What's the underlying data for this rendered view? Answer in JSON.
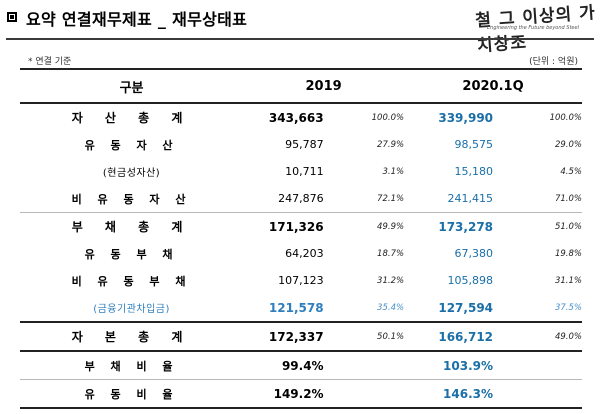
{
  "header": {
    "title": "요약 연결재무제표 _ 재무상태표",
    "logo_text": "철 그 이상의 가치창조",
    "logo_sub": "Engineering the Future beyond Steel"
  },
  "notes": {
    "left": "* 연결 기준",
    "right": "(단위 : 억원)"
  },
  "columns": {
    "label": "구분",
    "year1": "2019",
    "year2": "2020.1Q"
  },
  "rows": [
    {
      "label": "자 산 총 계",
      "v1": "343,663",
      "p1": "100.0%",
      "v2": "339,990",
      "p2": "100.0%"
    },
    {
      "label": "유 동 자 산",
      "v1": "95,787",
      "p1": "27.9%",
      "v2": "98,575",
      "p2": "29.0%"
    },
    {
      "label": "(현금성자산)",
      "v1": "10,711",
      "p1": "3.1%",
      "v2": "15,180",
      "p2": "4.5%"
    },
    {
      "label": "비 유 동 자 산",
      "v1": "247,876",
      "p1": "72.1%",
      "v2": "241,415",
      "p2": "71.0%"
    },
    {
      "label": "부 채 총 계",
      "v1": "171,326",
      "p1": "49.9%",
      "v2": "173,278",
      "p2": "51.0%"
    },
    {
      "label": "유 동 부 채",
      "v1": "64,203",
      "p1": "18.7%",
      "v2": "67,380",
      "p2": "19.8%"
    },
    {
      "label": "비 유 동 부 채",
      "v1": "107,123",
      "p1": "31.2%",
      "v2": "105,898",
      "p2": "31.1%"
    },
    {
      "label": "(금융기관차입금)",
      "v1": "121,578",
      "p1": "35.4%",
      "v2": "127,594",
      "p2": "37.5%"
    },
    {
      "label": "자 본 총 계",
      "v1": "172,337",
      "p1": "50.1%",
      "v2": "166,712",
      "p2": "49.0%"
    },
    {
      "label": "부 채 비 율",
      "v1": "99.4%",
      "p1": "",
      "v2": "103.9%",
      "p2": ""
    },
    {
      "label": "유 동 비 율",
      "v1": "149.2%",
      "p1": "",
      "v2": "146.3%",
      "p2": ""
    }
  ],
  "colors": {
    "accent_blue": "#1a6fa8",
    "loan_blue": "#2f7fbf"
  }
}
